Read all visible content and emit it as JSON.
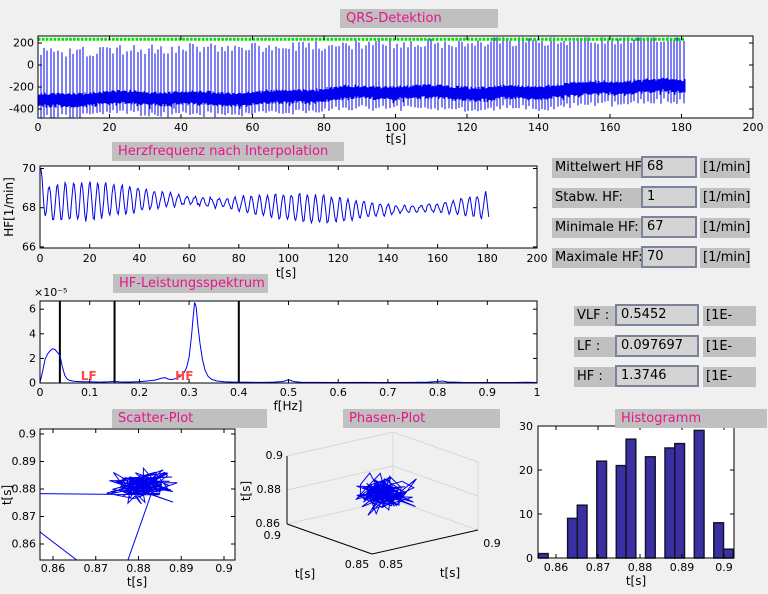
{
  "colors": {
    "figure_bg": "#f0f0f0",
    "title_bg": "#c0c0c0",
    "title_text": "#e8148b",
    "signal_blue": "#0000ee",
    "marker_green": "#00dd00",
    "hist_fill": "#3a2fa3",
    "hist_edge": "#15152a",
    "band_label_red": "#ff4646",
    "wall_gray": "#d8d8d8"
  },
  "panel": {
    "hr_stats": [
      {
        "label": "Mittelwert HF:",
        "value": "68",
        "unit": "[1/min]"
      },
      {
        "label": "Stabw. HF:",
        "value": "1",
        "unit": "[1/min]"
      },
      {
        "label": "Minimale HF:",
        "value": "67",
        "unit": "[1/min]"
      },
      {
        "label": "Maximale HF:",
        "value": "70",
        "unit": "[1/min]"
      }
    ],
    "spectral": [
      {
        "label": "VLF :",
        "value": "0.5452",
        "unit": "[1E-"
      },
      {
        "label": "LF :",
        "value": "0.097697",
        "unit": "[1E-"
      },
      {
        "label": "HF :",
        "value": "1.3746",
        "unit": "[1E-"
      }
    ]
  },
  "chart_data": [
    {
      "id": "qrs",
      "type": "line",
      "title": "QRS-Detektion",
      "xlabel": "t[s]",
      "xlim": [
        0,
        200
      ],
      "ylim": [
        -482,
        264
      ],
      "xticks": [
        0,
        20,
        40,
        60,
        80,
        100,
        120,
        140,
        160,
        180,
        200
      ],
      "yticks": [
        200,
        0,
        -200,
        -400
      ],
      "signal_duration_s": 181,
      "marker_value": 235,
      "baseline_start": -325,
      "baseline_end": -195,
      "spike_min": 95,
      "spike_max": 252,
      "beat_interval_s": 0.88
    },
    {
      "id": "hr",
      "type": "line",
      "title": "Herzfrequenz nach Interpolation",
      "xlabel": "t[s]",
      "ylabel": "HF[1/min]",
      "xlim": [
        0,
        200
      ],
      "ylim": [
        66,
        70
      ],
      "xticks": [
        0,
        20,
        40,
        60,
        80,
        100,
        120,
        140,
        160,
        180,
        200
      ],
      "yticks": [
        66,
        68,
        70
      ],
      "signal_duration_s": 181,
      "mean": 68,
      "osc_period_s": 3.25,
      "amp_base": 0.58,
      "start_value": 70
    },
    {
      "id": "spectrum",
      "type": "line",
      "title": "HF-Leistungsspektrum",
      "xlabel": "f[Hz]",
      "yscale_label": "×10⁻⁵",
      "xlim": [
        0,
        1
      ],
      "ylim": [
        0,
        6.67
      ],
      "xticks": [
        0,
        0.1,
        0.2,
        0.3,
        0.4,
        0.5,
        0.6,
        0.7,
        0.8,
        0.9,
        1
      ],
      "yticks": [
        0,
        2,
        4,
        6
      ],
      "vlines": [
        0.04,
        0.15,
        0.4
      ],
      "band_labels": [
        {
          "text": "LF",
          "x": 0.082
        },
        {
          "text": "HF",
          "x": 0.272
        }
      ],
      "points": [
        [
          0,
          0.05
        ],
        [
          0.005,
          0.9
        ],
        [
          0.01,
          1.9
        ],
        [
          0.015,
          2.35
        ],
        [
          0.02,
          2.6
        ],
        [
          0.025,
          2.78
        ],
        [
          0.03,
          2.72
        ],
        [
          0.035,
          2.5
        ],
        [
          0.04,
          2.25
        ],
        [
          0.045,
          1.3
        ],
        [
          0.05,
          0.62
        ],
        [
          0.055,
          0.32
        ],
        [
          0.06,
          0.2
        ],
        [
          0.07,
          0.13
        ],
        [
          0.085,
          0.1
        ],
        [
          0.1,
          0.1
        ],
        [
          0.12,
          0.07
        ],
        [
          0.14,
          0.1
        ],
        [
          0.15,
          0.13
        ],
        [
          0.16,
          0.09
        ],
        [
          0.18,
          0.08
        ],
        [
          0.2,
          0.11
        ],
        [
          0.215,
          0.16
        ],
        [
          0.23,
          0.23
        ],
        [
          0.245,
          0.4
        ],
        [
          0.252,
          0.44
        ],
        [
          0.258,
          0.32
        ],
        [
          0.265,
          0.28
        ],
        [
          0.272,
          0.35
        ],
        [
          0.28,
          0.5
        ],
        [
          0.285,
          0.62
        ],
        [
          0.29,
          0.85
        ],
        [
          0.295,
          1.25
        ],
        [
          0.3,
          2.1
        ],
        [
          0.305,
          3.9
        ],
        [
          0.308,
          5.3
        ],
        [
          0.311,
          6.55
        ],
        [
          0.314,
          6.2
        ],
        [
          0.318,
          4.6
        ],
        [
          0.322,
          3.2
        ],
        [
          0.327,
          1.9
        ],
        [
          0.332,
          1.05
        ],
        [
          0.338,
          0.55
        ],
        [
          0.345,
          0.3
        ],
        [
          0.355,
          0.17
        ],
        [
          0.37,
          0.1
        ],
        [
          0.39,
          0.07
        ],
        [
          0.42,
          0.06
        ],
        [
          0.45,
          0.05
        ],
        [
          0.47,
          0.07
        ],
        [
          0.49,
          0.12
        ],
        [
          0.5,
          0.27
        ],
        [
          0.51,
          0.12
        ],
        [
          0.525,
          0.06
        ],
        [
          0.56,
          0.05
        ],
        [
          0.6,
          0.04
        ],
        [
          0.65,
          0.05
        ],
        [
          0.7,
          0.04
        ],
        [
          0.75,
          0.05
        ],
        [
          0.78,
          0.07
        ],
        [
          0.8,
          0.12
        ],
        [
          0.81,
          0.16
        ],
        [
          0.82,
          0.08
        ],
        [
          0.85,
          0.05
        ],
        [
          0.9,
          0.04
        ],
        [
          0.95,
          0.04
        ],
        [
          0.98,
          0.06
        ],
        [
          1,
          0.04
        ]
      ]
    },
    {
      "id": "scatter",
      "type": "scatter-line",
      "title": "Scatter-Plot",
      "xlabel": "t[s]",
      "ylabel": "t[s]",
      "xlim": [
        0.857,
        0.9026
      ],
      "ylim": [
        0.854,
        0.9018
      ],
      "xticks": [
        0.86,
        0.87,
        0.88,
        0.89,
        0.9
      ],
      "yticks": [
        0.86,
        0.87,
        0.88,
        0.89,
        0.9
      ],
      "center": [
        0.8807,
        0.8813
      ],
      "spread": [
        0.011,
        0.0085
      ],
      "n_points": 130,
      "outliers": [
        [
          0.845,
          0.8785
        ],
        [
          0.875,
          0.843
        ]
      ]
    },
    {
      "id": "phase",
      "type": "line3d",
      "title": "Phasen-Plot",
      "xlabel": "t[s]",
      "ylabel": "t[s]",
      "zlabel": "t[s]",
      "xticks": [
        0.85,
        0.9
      ],
      "yticks": [
        0.9,
        0.85
      ],
      "zticks": [
        0.9,
        0.88,
        0.86
      ],
      "xlim": [
        0.85,
        0.9
      ],
      "ylim": [
        0.85,
        0.9
      ],
      "zlim": [
        0.86,
        0.9
      ],
      "center": [
        0.8775,
        0.8775,
        0.8785
      ],
      "spread": [
        0.014,
        0.014,
        0.013
      ],
      "n_points": 150
    },
    {
      "id": "hist",
      "type": "bar",
      "title": "Histogramm",
      "xlabel": "t[s]",
      "bin_start": 0.8558,
      "bin_width": 0.00232,
      "counts": [
        1,
        0,
        0,
        9,
        12,
        0,
        22,
        0,
        21,
        27,
        0,
        23,
        0,
        25,
        26,
        0,
        29,
        0,
        8,
        2
      ],
      "xlim": [
        0.8552,
        0.9028
      ],
      "ylim": [
        0,
        30
      ],
      "xticks": [
        0.86,
        0.87,
        0.88,
        0.89,
        0.9
      ],
      "yticks": [
        0,
        10,
        20,
        30
      ]
    }
  ]
}
